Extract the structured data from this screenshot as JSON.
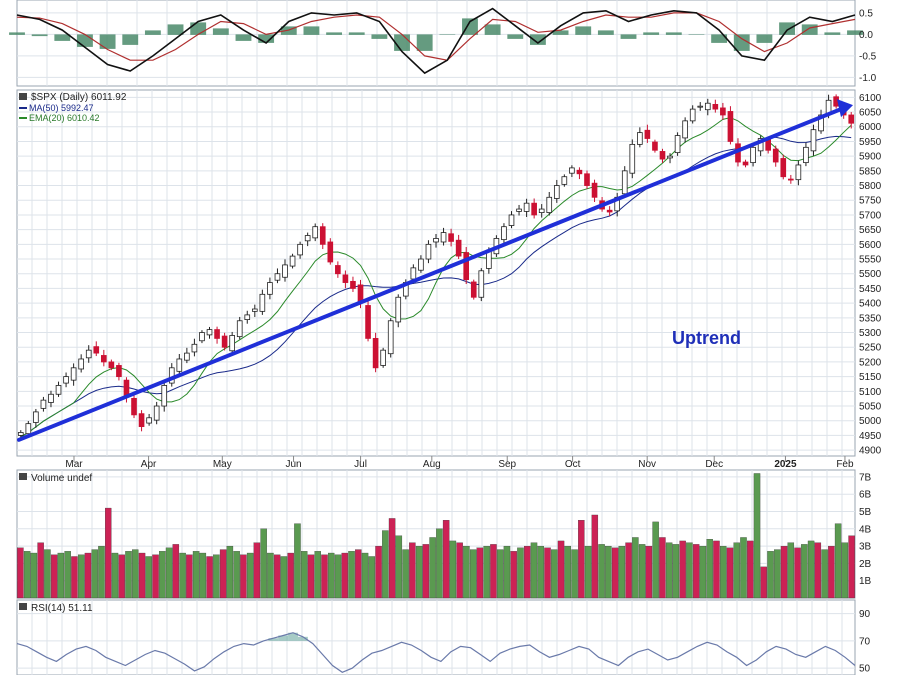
{
  "colors": {
    "up": "#4a8a3a",
    "down": "#cc1133",
    "volume_up": "#5a9a50",
    "volume_down": "#cc2255",
    "ma50": "#1a2a8a",
    "ema20": "#2a8a2a",
    "trendline": "#1f2fd8",
    "annotation": "#1f2fb8",
    "macd": "#111111",
    "signal": "#b03030",
    "histogram": "#4a8a6a",
    "rsi": "#6a7aaa",
    "grid": "#dde3ea"
  },
  "chart_data": [
    {
      "type": "line",
      "panel": "macd",
      "title": "",
      "ylim": [
        -1.2,
        0.8
      ],
      "yticks": [
        "0.5",
        "0.0",
        "-0.5",
        "-1.0"
      ],
      "series": [
        {
          "values": [
            0.45,
            0.35,
            0.1,
            -0.3,
            -0.7,
            -0.85,
            -0.5,
            -0.1,
            0.3,
            0.45,
            0.1,
            -0.2,
            0.3,
            0.5,
            0.45,
            0.5,
            0.3,
            -0.4,
            -0.9,
            -0.6,
            0.3,
            0.6,
            0.2,
            -0.2,
            0.2,
            0.5,
            0.55,
            0.3,
            0.45,
            0.55,
            0.5,
            0.1,
            -0.5,
            -0.6,
            0.1,
            0.4,
            0.3,
            0.45
          ]
        },
        {
          "values": [
            0.4,
            0.38,
            0.25,
            0.0,
            -0.35,
            -0.6,
            -0.6,
            -0.35,
            0.0,
            0.3,
            0.25,
            0.0,
            0.1,
            0.3,
            0.4,
            0.45,
            0.4,
            0.0,
            -0.5,
            -0.6,
            -0.1,
            0.35,
            0.3,
            0.05,
            0.1,
            0.3,
            0.45,
            0.4,
            0.4,
            0.5,
            0.5,
            0.3,
            -0.1,
            -0.4,
            -0.2,
            0.15,
            0.25,
            0.35
          ]
        }
      ]
    },
    {
      "type": "candlestick",
      "panel": "price",
      "title": "$SPX (Daily) 6011.92",
      "legend": [
        "MA(50) 5992.47",
        "EMA(20) 6010.42"
      ],
      "annotation": "Uptrend",
      "x_labels": [
        "Mar",
        "Apr",
        "May",
        "Jun",
        "Jul",
        "Aug",
        "Sep",
        "Oct",
        "Nov",
        "Dec",
        "2025",
        "Feb"
      ],
      "yticks": [
        "6100",
        "6050",
        "6000",
        "5950",
        "5900",
        "5850",
        "5800",
        "5750",
        "5700",
        "5650",
        "5600",
        "5550",
        "5500",
        "5450",
        "5400",
        "5350",
        "5300",
        "5250",
        "5200",
        "5150",
        "5100",
        "5050",
        "5000",
        "4950",
        "4900"
      ],
      "ylim": [
        4880,
        6125
      ],
      "close": [
        4960,
        4990,
        5030,
        5070,
        5090,
        5120,
        5150,
        5180,
        5210,
        5240,
        5230,
        5200,
        5180,
        5150,
        5080,
        5020,
        4980,
        5010,
        5050,
        5120,
        5180,
        5210,
        5230,
        5260,
        5300,
        5310,
        5280,
        5250,
        5290,
        5340,
        5360,
        5380,
        5430,
        5470,
        5500,
        5530,
        5560,
        5600,
        5630,
        5660,
        5600,
        5540,
        5500,
        5470,
        5450,
        5400,
        5280,
        5180,
        5240,
        5340,
        5420,
        5470,
        5520,
        5550,
        5600,
        5620,
        5640,
        5610,
        5560,
        5480,
        5420,
        5510,
        5580,
        5620,
        5660,
        5700,
        5720,
        5740,
        5700,
        5720,
        5760,
        5800,
        5830,
        5860,
        5840,
        5800,
        5760,
        5720,
        5710,
        5760,
        5850,
        5940,
        5980,
        5960,
        5920,
        5890,
        5900,
        5970,
        6020,
        6060,
        6070,
        6080,
        6060,
        6040,
        5950,
        5880,
        5870,
        5930,
        5960,
        5920,
        5880,
        5830,
        5820,
        5870,
        5930,
        5990,
        6040,
        6090,
        6070,
        6040,
        6012
      ]
    },
    {
      "type": "bar",
      "panel": "volume",
      "title": "Volume undef",
      "yticks": [
        "7B",
        "6B",
        "5B",
        "4B",
        "3B",
        "2B",
        "1B"
      ],
      "ylim": [
        0,
        7.4
      ],
      "values": [
        2.9,
        2.7,
        2.6,
        3.2,
        2.8,
        2.5,
        2.6,
        2.7,
        2.4,
        2.5,
        2.6,
        2.8,
        3.0,
        5.2,
        2.6,
        2.5,
        2.7,
        2.8,
        2.6,
        2.4,
        2.5,
        2.7,
        2.9,
        3.1,
        2.6,
        2.5,
        2.7,
        2.6,
        2.4,
        2.5,
        2.8,
        3.0,
        2.7,
        2.5,
        2.6,
        3.2,
        4.0,
        2.6,
        2.5,
        2.4,
        2.6,
        4.3,
        2.7,
        2.5,
        2.7,
        2.5,
        2.6,
        2.5,
        2.6,
        2.7,
        2.8,
        2.6,
        2.4,
        3.0,
        3.9,
        4.6,
        3.6,
        2.8,
        3.2,
        3.0,
        3.1,
        3.5,
        4.0,
        4.5,
        3.3,
        3.2,
        3.0,
        2.8,
        2.9,
        3.0,
        3.1,
        2.8,
        3.0,
        2.7,
        2.9,
        3.0,
        3.2,
        3.0,
        2.9,
        2.8,
        3.3,
        3.0,
        2.8,
        4.5,
        3.0,
        4.8,
        3.1,
        3.0,
        2.9,
        3.0,
        3.2,
        3.5,
        3.1,
        3.0,
        4.4,
        3.5,
        3.2,
        3.1,
        3.3,
        3.2,
        3.1,
        3.0,
        3.4,
        3.3,
        3.0,
        2.9,
        3.2,
        3.5,
        3.3,
        7.2,
        1.8,
        2.7,
        2.8,
        3.0,
        3.2,
        2.9,
        3.1,
        3.3,
        3.2,
        2.8,
        3.0,
        4.3,
        3.2,
        3.6
      ]
    },
    {
      "type": "line",
      "panel": "rsi",
      "title": "RSI(14) 51.11",
      "yticks": [
        "90",
        "70",
        "50"
      ],
      "ylim": [
        45,
        100
      ],
      "values": [
        68,
        66,
        62,
        58,
        55,
        60,
        64,
        66,
        63,
        58,
        55,
        52,
        56,
        60,
        63,
        61,
        57,
        53,
        48,
        51,
        57,
        62,
        66,
        68,
        67,
        70,
        72,
        74,
        76,
        73,
        68,
        60,
        52,
        47,
        50,
        56,
        61,
        63,
        66,
        69,
        67,
        63,
        58,
        55,
        62,
        66,
        65,
        60,
        55,
        61,
        64,
        66,
        67,
        62,
        58,
        60,
        63,
        66,
        64,
        58,
        55,
        52,
        58,
        62,
        64,
        60,
        56,
        58,
        62,
        66,
        69,
        67,
        62,
        58,
        52,
        56,
        62,
        66,
        64,
        60,
        58,
        62,
        66,
        63,
        58,
        52
      ]
    }
  ]
}
